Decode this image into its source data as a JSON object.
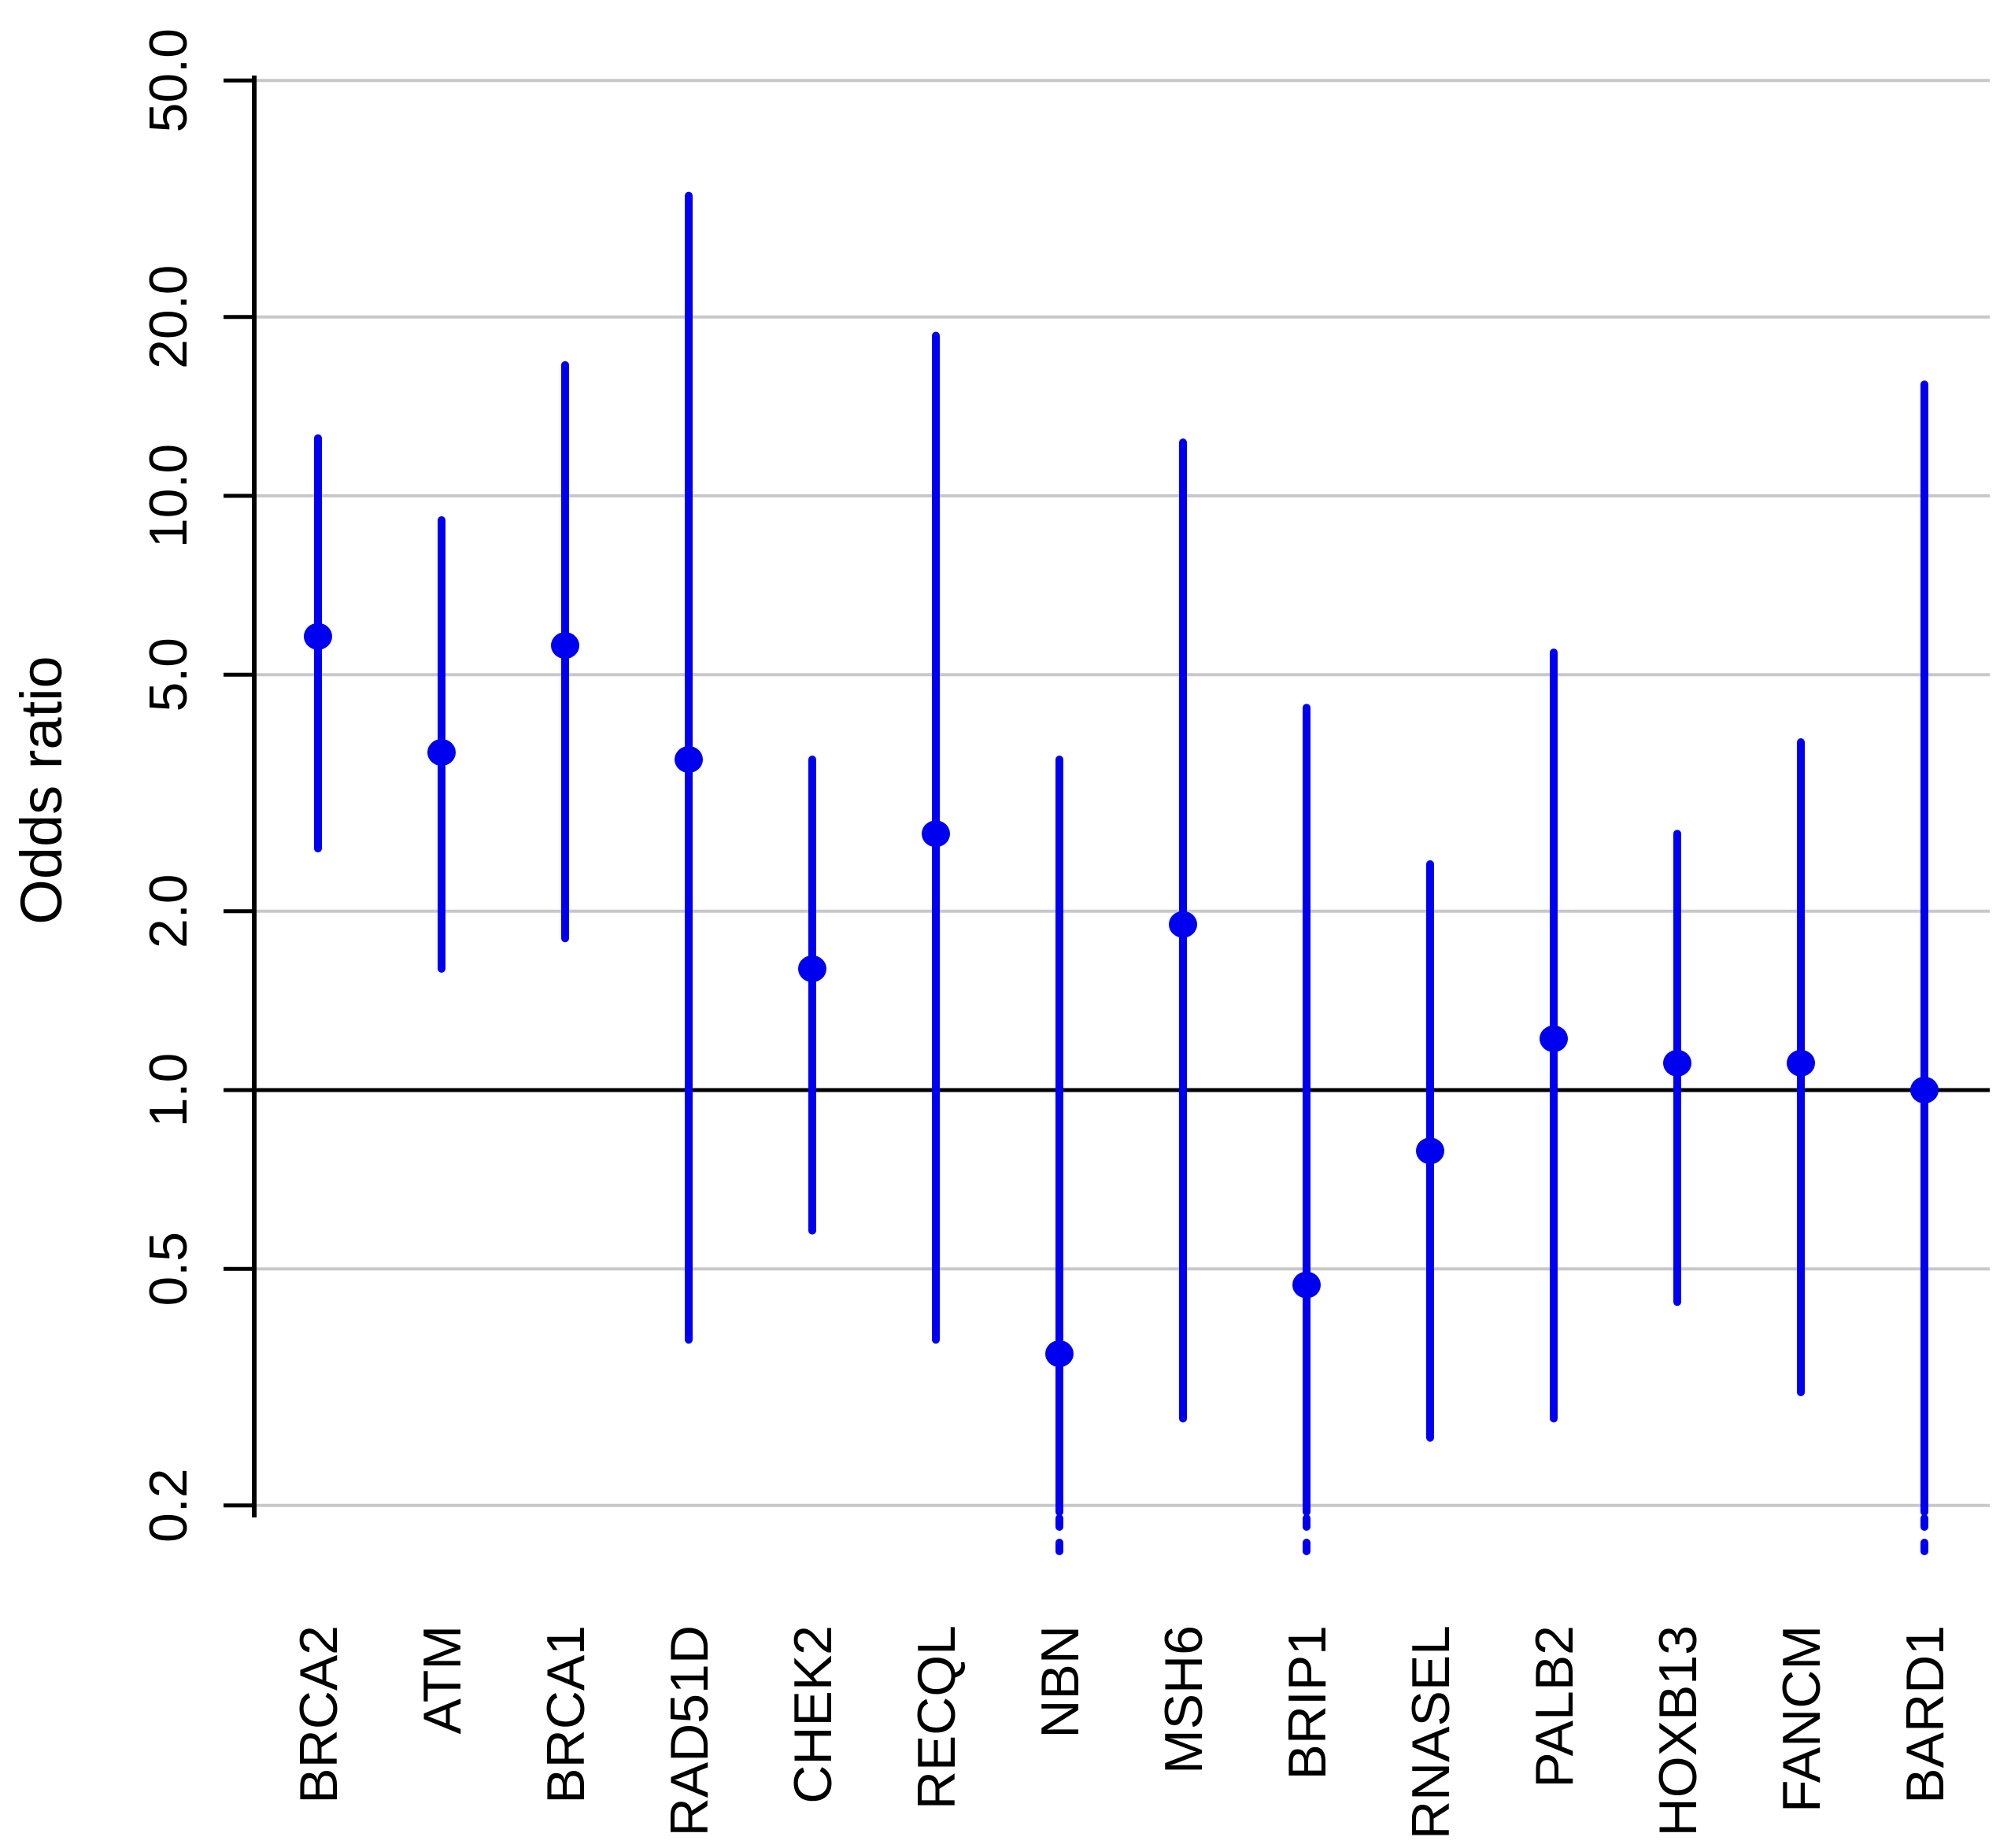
{
  "chart_data": {
    "type": "pointrange",
    "subtype": "forest-plot",
    "title": "",
    "xlabel": "",
    "ylabel": "Odds ratio",
    "scale_y": "log10",
    "ylim": [
      0.17,
      55
    ],
    "grid": true,
    "legend_position": "none",
    "reference_line_y": 1.0,
    "y_ticks": [
      {
        "value": 50.0,
        "label": "50.0"
      },
      {
        "value": 20.0,
        "label": "20.0"
      },
      {
        "value": 10.0,
        "label": "10.0"
      },
      {
        "value": 5.0,
        "label": "5.0"
      },
      {
        "value": 2.0,
        "label": "2.0"
      },
      {
        "value": 1.0,
        "label": "1.0"
      },
      {
        "value": 0.5,
        "label": "0.5"
      },
      {
        "value": 0.2,
        "label": "0.2"
      }
    ],
    "categories": [
      "BRCA2",
      "ATM",
      "BRCA1",
      "RAD51D",
      "CHEK2",
      "RECQL",
      "NBN",
      "MSH6",
      "BRIP1",
      "RNASEL",
      "PALB2",
      "HOXB13",
      "FANCM",
      "BARD1"
    ],
    "points": [
      {
        "gene": "BRCA2",
        "or": 5.8,
        "ci_low": 2.55,
        "ci_high": 12.5,
        "ci_low_truncated": false
      },
      {
        "gene": "ATM",
        "or": 3.7,
        "ci_low": 1.6,
        "ci_high": 9.1,
        "ci_low_truncated": false
      },
      {
        "gene": "BRCA1",
        "or": 5.6,
        "ci_low": 1.8,
        "ci_high": 16.6,
        "ci_low_truncated": false
      },
      {
        "gene": "RAD51D",
        "or": 3.6,
        "ci_low": 0.38,
        "ci_high": 32.0,
        "ci_low_truncated": false
      },
      {
        "gene": "CHEK2",
        "or": 1.6,
        "ci_low": 0.58,
        "ci_high": 3.6,
        "ci_low_truncated": false
      },
      {
        "gene": "RECQL",
        "or": 2.7,
        "ci_low": 0.38,
        "ci_high": 18.6,
        "ci_low_truncated": false
      },
      {
        "gene": "NBN",
        "or": 0.36,
        "ci_low": null,
        "ci_high": 3.6,
        "ci_low_truncated": true
      },
      {
        "gene": "MSH6",
        "or": 1.9,
        "ci_low": 0.28,
        "ci_high": 12.3,
        "ci_low_truncated": false
      },
      {
        "gene": "BRIP1",
        "or": 0.47,
        "ci_low": null,
        "ci_high": 4.4,
        "ci_low_truncated": true
      },
      {
        "gene": "RNASEL",
        "or": 0.79,
        "ci_low": 0.26,
        "ci_high": 2.4,
        "ci_low_truncated": false
      },
      {
        "gene": "PALB2",
        "or": 1.22,
        "ci_low": 0.28,
        "ci_high": 5.45,
        "ci_low_truncated": false
      },
      {
        "gene": "HOXB13",
        "or": 1.11,
        "ci_low": 0.44,
        "ci_high": 2.7,
        "ci_low_truncated": false
      },
      {
        "gene": "FANCM",
        "or": 1.11,
        "ci_low": 0.31,
        "ci_high": 3.85,
        "ci_low_truncated": false
      },
      {
        "gene": "BARD1",
        "or": 1.0,
        "ci_low": null,
        "ci_high": 15.4,
        "ci_low_truncated": true
      }
    ],
    "colors": {
      "point_and_ci": "#0000f0",
      "gridline": "#c8c8c8",
      "reference_line": "#000000",
      "axis": "#000000",
      "background": "#ffffff"
    }
  }
}
